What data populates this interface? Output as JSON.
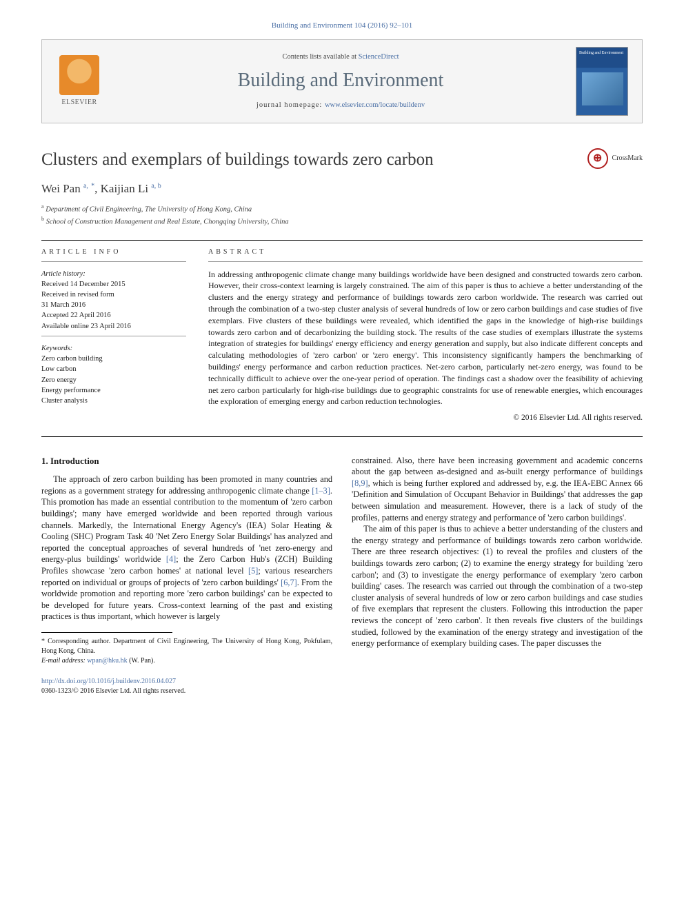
{
  "citation": "Building and Environment 104 (2016) 92–101",
  "banner": {
    "contents_prefix": "Contents lists available at ",
    "contents_link": "ScienceDirect",
    "journal": "Building and Environment",
    "homepage_prefix": "journal homepage: ",
    "homepage_url": "www.elsevier.com/locate/buildenv",
    "publisher": "ELSEVIER",
    "cover_label": "Building and Environment"
  },
  "title": "Clusters and exemplars of buildings towards zero carbon",
  "crossmark": "CrossMark",
  "authors_html": "Wei Pan",
  "author1": {
    "name": "Wei Pan",
    "aff": "a,",
    "star": "*"
  },
  "author2": {
    "name": "Kaijian Li",
    "aff": "a, b"
  },
  "sep": ", ",
  "affiliations": {
    "a": "Department of Civil Engineering, The University of Hong Kong, China",
    "b": "School of Construction Management and Real Estate, Chongqing University, China"
  },
  "info_head": "ARTICLE INFO",
  "abstract_head": "ABSTRACT",
  "history": {
    "label": "Article history:",
    "received": "Received 14 December 2015",
    "revised1": "Received in revised form",
    "revised2": "31 March 2016",
    "accepted": "Accepted 22 April 2016",
    "online": "Available online 23 April 2016"
  },
  "keywords": {
    "label": "Keywords:",
    "items": [
      "Zero carbon building",
      "Low carbon",
      "Zero energy",
      "Energy performance",
      "Cluster analysis"
    ]
  },
  "abstract": "In addressing anthropogenic climate change many buildings worldwide have been designed and constructed towards zero carbon. However, their cross-context learning is largely constrained. The aim of this paper is thus to achieve a better understanding of the clusters and the energy strategy and performance of buildings towards zero carbon worldwide. The research was carried out through the combination of a two-step cluster analysis of several hundreds of low or zero carbon buildings and case studies of five exemplars. Five clusters of these buildings were revealed, which identified the gaps in the knowledge of high-rise buildings towards zero carbon and of decarbonizing the building stock. The results of the case studies of exemplars illustrate the systems integration of strategies for buildings' energy efficiency and energy generation and supply, but also indicate different concepts and calculating methodologies of 'zero carbon' or 'zero energy'. This inconsistency significantly hampers the benchmarking of buildings' energy performance and carbon reduction practices. Net-zero carbon, particularly net-zero energy, was found to be technically difficult to achieve over the one-year period of operation. The findings cast a shadow over the feasibility of achieving net zero carbon particularly for high-rise buildings due to geographic constraints for use of renewable energies, which encourages the exploration of emerging energy and carbon reduction technologies.",
  "copyright": "© 2016 Elsevier Ltd. All rights reserved.",
  "intro_head": "1. Introduction",
  "intro_p1a": "The approach of zero carbon building has been promoted in many countries and regions as a government strategy for addressing anthropogenic climate change ",
  "intro_p1_ref1": "[1–3]",
  "intro_p1b": ". This promotion has made an essential contribution to the momentum of 'zero carbon buildings'; many have emerged worldwide and been reported through various channels. Markedly, the International Energy Agency's (IEA) Solar Heating & Cooling (SHC) Program Task 40 'Net Zero Energy Solar Buildings' has analyzed and reported the conceptual approaches of several hundreds of 'net zero-energy and energy-plus buildings' worldwide ",
  "intro_p1_ref2": "[4]",
  "intro_p1c": "; the Zero Carbon Hub's (ZCH) Building Profiles showcase 'zero carbon homes' at national level ",
  "intro_p1_ref3": "[5]",
  "intro_p1d": "; various researchers reported on individual or groups of projects of 'zero carbon buildings' ",
  "intro_p1_ref4": "[6,7]",
  "intro_p1e": ". From the worldwide promotion and reporting more 'zero carbon buildings' can be expected to be developed for future years. Cross-context learning of the past and existing practices is thus important, which however is largely ",
  "intro_p1f": "constrained. Also, there have been increasing government and academic concerns about the gap between as-designed and as-built energy performance of buildings ",
  "intro_p1_ref5": "[8,9]",
  "intro_p1g": ", which is being further explored and addressed by, e.g. the IEA-EBC Annex 66 'Definition and Simulation of Occupant Behavior in Buildings' that addresses the gap between simulation and measurement. However, there is a lack of study of the profiles, patterns and energy strategy and performance of 'zero carbon buildings'.",
  "intro_p2": "The aim of this paper is thus to achieve a better understanding of the clusters and the energy strategy and performance of buildings towards zero carbon worldwide. There are three research objectives: (1) to reveal the profiles and clusters of the buildings towards zero carbon; (2) to examine the energy strategy for building 'zero carbon'; and (3) to investigate the energy performance of exemplary 'zero carbon building' cases. The research was carried out through the combination of a two-step cluster analysis of several hundreds of low or zero carbon buildings and case studies of five exemplars that represent the clusters. Following this introduction the paper reviews the concept of 'zero carbon'. It then reveals five clusters of the buildings studied, followed by the examination of the energy strategy and investigation of the energy performance of exemplary building cases. The paper discusses the",
  "footnote": {
    "corr": "* Corresponding author. Department of Civil Engineering, The University of Hong Kong, Pokfulam, Hong Kong, China.",
    "email_label": "E-mail address: ",
    "email": "wpan@hku.hk",
    "email_suffix": " (W. Pan)."
  },
  "bottom": {
    "doi": "http://dx.doi.org/10.1016/j.buildenv.2016.04.027",
    "issn_line": "0360-1323/© 2016 Elsevier Ltd. All rights reserved."
  },
  "colors": {
    "link": "#4a6fa5",
    "text": "#1a1a1a",
    "journal": "#5a6b7a",
    "elsevier": "#e78a2a"
  }
}
